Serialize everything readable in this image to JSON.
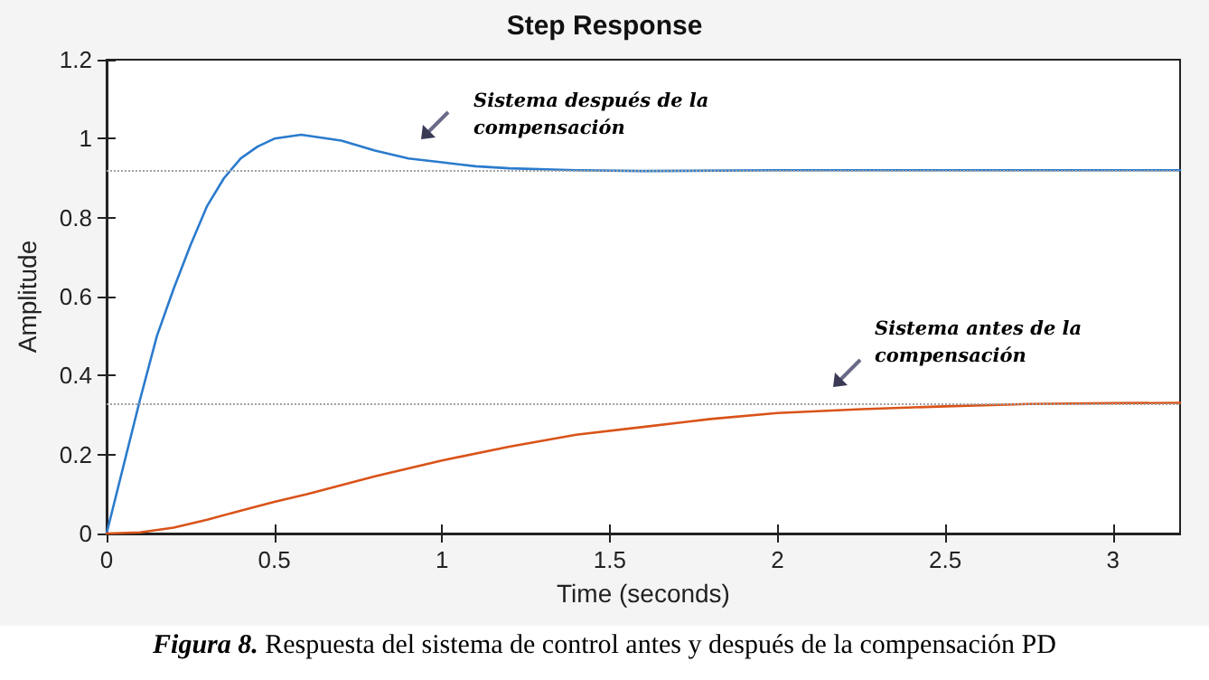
{
  "chart_data": {
    "type": "line",
    "title": "Step Response",
    "xlabel": "Time (seconds)",
    "ylabel": "Amplitude",
    "xlim": [
      0,
      3.2
    ],
    "xticks": [
      0,
      0.5,
      1,
      1.5,
      2,
      2.5,
      3
    ],
    "ylim": [
      0,
      1.2
    ],
    "yticks": [
      0,
      0.2,
      0.4,
      0.6,
      0.8,
      1,
      1.2
    ],
    "grid": false,
    "marker": "none",
    "line_style": "solid",
    "series": [
      {
        "color": "#2b7bcd",
        "x": [
          0,
          0.05,
          0.1,
          0.15,
          0.2,
          0.25,
          0.3,
          0.35,
          0.4,
          0.45,
          0.5,
          0.58,
          0.7,
          0.8,
          0.9,
          1.0,
          1.1,
          1.2,
          1.4,
          1.6,
          2,
          2.5,
          3.2
        ],
        "values": [
          0,
          0.17,
          0.34,
          0.5,
          0.62,
          0.73,
          0.83,
          0.9,
          0.95,
          0.98,
          1.0,
          1.01,
          0.995,
          0.97,
          0.95,
          0.94,
          0.93,
          0.925,
          0.92,
          0.918,
          0.92,
          0.92,
          0.92
        ]
      },
      {
        "color": "#d95319",
        "x": [
          0,
          0.1,
          0.2,
          0.3,
          0.4,
          0.5,
          0.6,
          0.8,
          1.0,
          1.2,
          1.4,
          1.6,
          1.8,
          2.0,
          2.25,
          2.5,
          2.75,
          3.0,
          3.2
        ],
        "values": [
          0,
          0.003,
          0.015,
          0.035,
          0.058,
          0.08,
          0.1,
          0.145,
          0.185,
          0.22,
          0.25,
          0.27,
          0.29,
          0.305,
          0.315,
          0.322,
          0.328,
          0.33,
          0.331
        ]
      }
    ],
    "ref_lines": [
      {
        "axis": "y",
        "value": 0.92,
        "color": "#a0a0a0",
        "line_style": "dotted"
      },
      {
        "axis": "y",
        "value": 0.333,
        "color": "#a0a0a0",
        "line_style": "dotted"
      }
    ],
    "annotations": [
      "Sistema después de la compensación",
      "Sistema antes de la compensación",
      "Figura 8. Respuesta del sistema de control antes y después de la compensación PD"
    ]
  }
}
